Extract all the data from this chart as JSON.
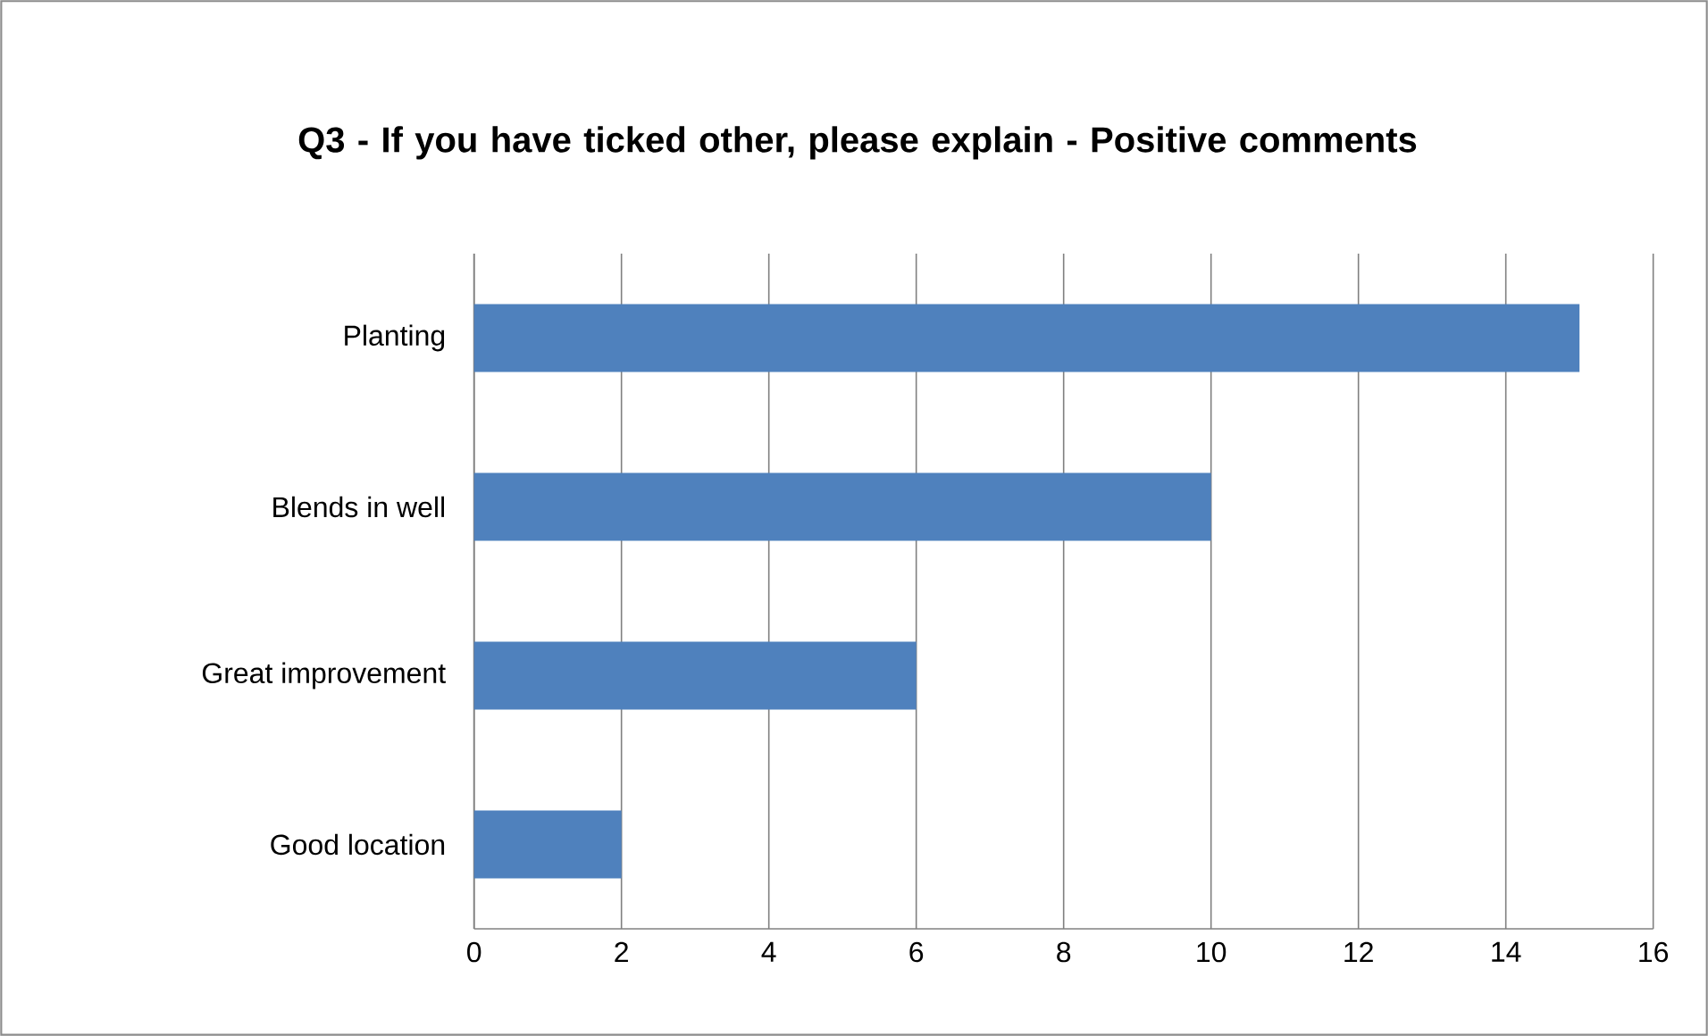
{
  "chart_data": {
    "type": "bar",
    "orientation": "horizontal",
    "title": "Q3 - If you have ticked other, please explain - Positive comments",
    "categories": [
      "Planting",
      "Blends in well",
      "Great improvement",
      "Good location"
    ],
    "values": [
      15,
      10,
      6,
      2
    ],
    "color": "#4f81bd",
    "xlim": [
      0,
      16
    ],
    "xticks": [
      0,
      2,
      4,
      6,
      8,
      10,
      12,
      14,
      16
    ],
    "grid": "x"
  }
}
